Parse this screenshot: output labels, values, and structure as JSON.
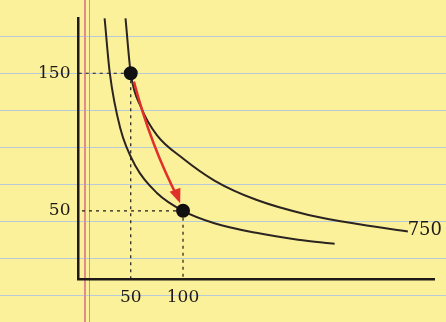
{
  "chart_data": {
    "type": "scatter",
    "xlim": [
      0,
      340
    ],
    "ylim": [
      0,
      190
    ],
    "xticks": [
      50,
      100
    ],
    "yticks": [
      50,
      150
    ],
    "grid": false,
    "series": [
      {
        "type": "line",
        "color": "#2b2420",
        "marker": "none",
        "line_style": "solid",
        "x": [
          45,
          50,
          60,
          75,
          100,
          130,
          170,
          220,
          270,
          315
        ],
        "values": [
          190,
          150,
          125,
          105,
          88,
          72,
          58,
          47,
          40,
          35
        ]
      },
      {
        "type": "line",
        "color": "#2b2420",
        "marker": "none",
        "line_style": "solid",
        "x": [
          25,
          30,
          40,
          55,
          75,
          100,
          130,
          170,
          210,
          245
        ],
        "values": [
          190,
          150,
          110,
          82,
          63,
          50,
          41,
          34,
          29,
          26
        ]
      },
      {
        "type": "scatter",
        "color": "#111111",
        "marker": "circle",
        "line_style": "none",
        "x": [
          50,
          100
        ],
        "values": [
          150,
          50
        ]
      }
    ],
    "annotations": [
      {
        "text": "750",
        "x": 318,
        "y": 36
      }
    ]
  }
}
